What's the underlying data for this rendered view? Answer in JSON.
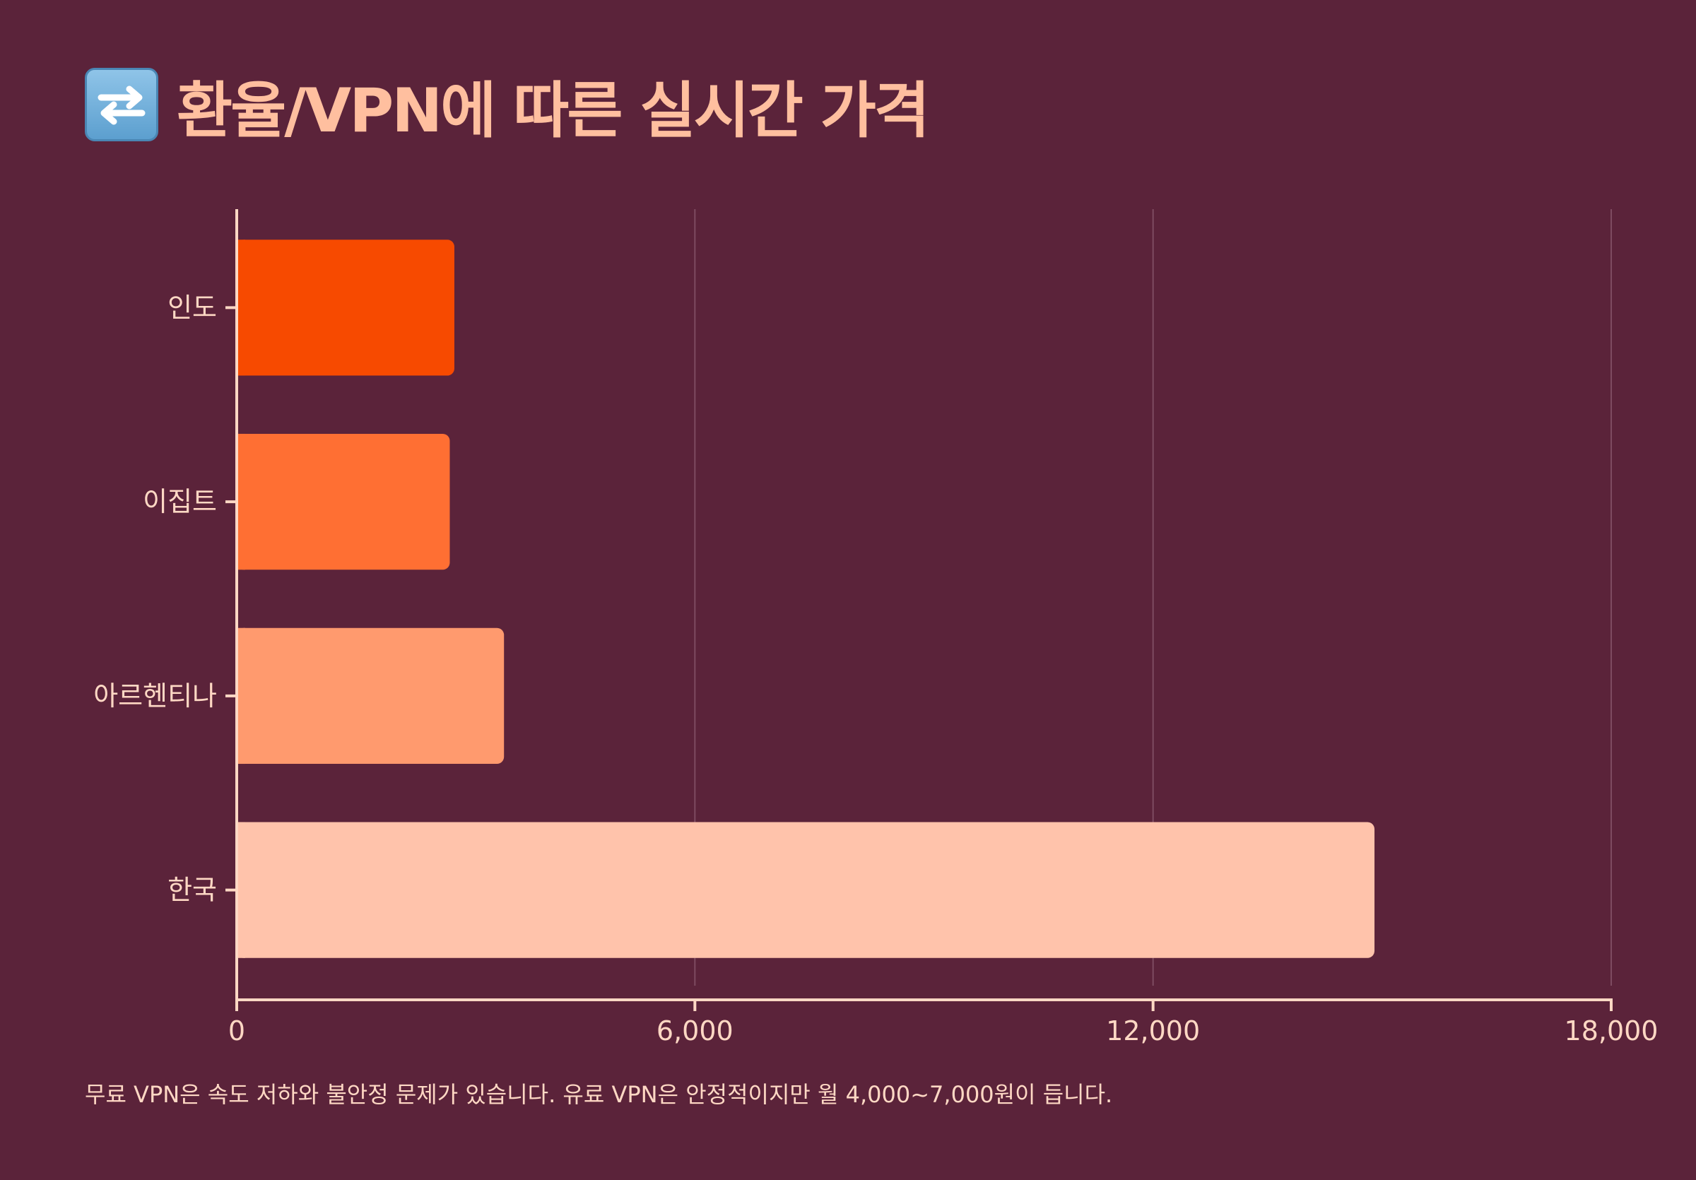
{
  "title": "환율/VPN에 따른 실시간 가격",
  "title_icon": "arrows-counterclockwise-icon",
  "footnote": "무료 VPN은 속도 저하와 불안정 문제가 있습니다. 유료 VPN은 안정적이지만 월 4,000~7,000원이 듭니다.",
  "colors": {
    "background": "#5b233a",
    "title": "#ffbf9f",
    "text": "#ffd8c4",
    "axis": "#ffd8c4",
    "grid": "#7e4b61"
  },
  "chart_data": {
    "type": "bar",
    "orientation": "horizontal",
    "categories": [
      "인도",
      "이집트",
      "아르헨티나",
      "한국"
    ],
    "values": [
      2850,
      2790,
      3500,
      14900
    ],
    "bar_colors": [
      "#f74a00",
      "#ff6f33",
      "#ff9a6e",
      "#ffc3ab"
    ],
    "xlim": [
      0,
      18000
    ],
    "xticks": [
      0,
      6000,
      12000,
      18000
    ],
    "xtick_labels": [
      "0",
      "6,000",
      "12,000",
      "18,000"
    ],
    "grid": true,
    "xlabel": "",
    "ylabel": ""
  }
}
